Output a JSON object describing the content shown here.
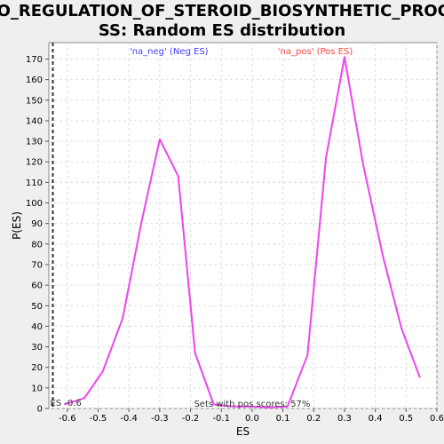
{
  "chart_data": {
    "type": "line",
    "title_lines": [
      "GO_REGULATION_OF_STEROID_BIOSYNTHETIC_PROCE",
      "SS: Random ES distribution"
    ],
    "xlabel": "ES",
    "ylabel": "P(ES)",
    "xlim": [
      -0.66,
      0.6
    ],
    "ylim": [
      0,
      178
    ],
    "x_ticks": [
      -0.6,
      -0.5,
      -0.4,
      -0.3,
      -0.2,
      -0.1,
      0.0,
      0.1,
      0.2,
      0.3,
      0.4,
      0.5,
      0.6
    ],
    "x_tick_labels": [
      "-0.6",
      "-0.5",
      "-0.4",
      "-0.3",
      "-0.2",
      "-0.1",
      "0.0",
      "0.1",
      "0.2",
      "0.3",
      "0.4",
      "0.5",
      "0.6"
    ],
    "y_ticks": [
      0,
      10,
      20,
      30,
      40,
      50,
      60,
      70,
      80,
      90,
      100,
      110,
      120,
      130,
      140,
      150,
      160,
      170
    ],
    "grid": true,
    "legend": [
      {
        "label": "'na_neg' (Neg ES)",
        "color": "#4040ff"
      },
      {
        "label": "'na_pos' (Pos ES)",
        "color": "#ff4040"
      }
    ],
    "series": [
      {
        "color": "#ee44ee",
        "x": [
          -0.61,
          -0.545,
          -0.485,
          -0.42,
          -0.36,
          -0.3,
          -0.24,
          -0.185,
          -0.125,
          -0.065,
          0.0,
          0.055,
          0.115,
          0.18,
          0.24,
          0.3,
          0.36,
          0.425,
          0.485,
          0.545
        ],
        "y": [
          2,
          5,
          18,
          44,
          90,
          131,
          113,
          27,
          2,
          1,
          1,
          0.5,
          1,
          26,
          122,
          171,
          119,
          74,
          39,
          15
        ]
      }
    ],
    "es_marker": {
      "x": -0.647,
      "label": "ES -0.6"
    },
    "footer_annotation": "Sets with pos scores: 57%"
  }
}
